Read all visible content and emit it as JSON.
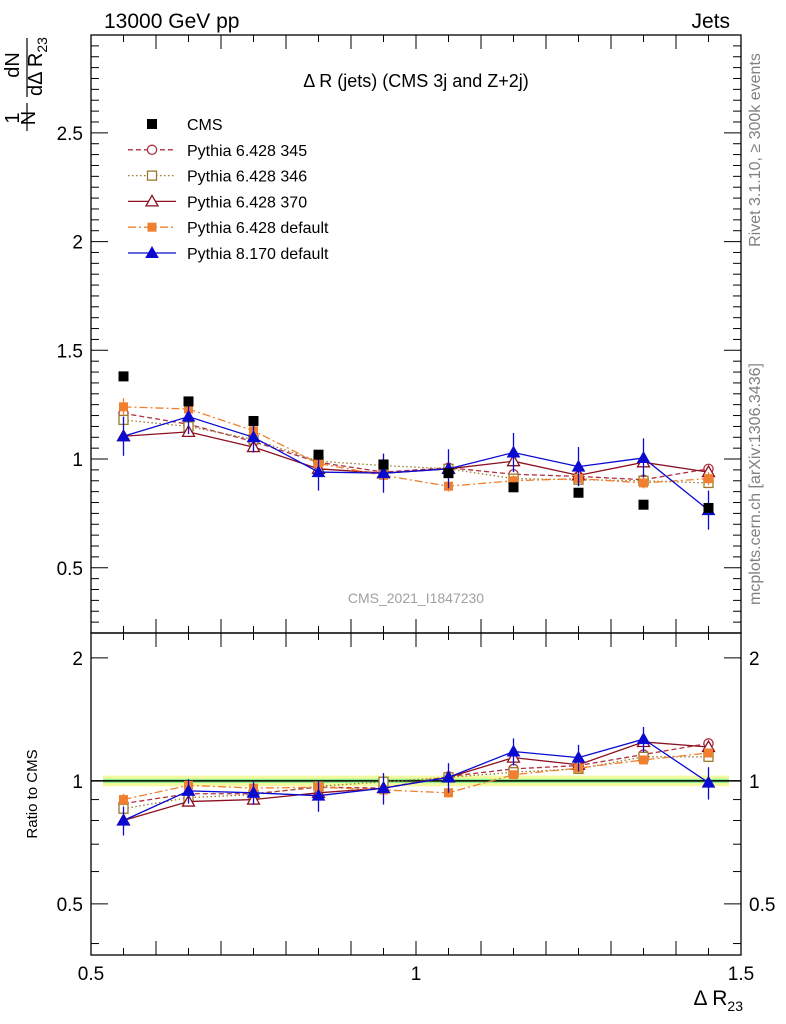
{
  "header": {
    "energy_label": "13000 GeV pp",
    "process_label": "Jets"
  },
  "side_labels": {
    "rivet": "Rivet 3.1.10, ≥ 300k events",
    "mcplots": "mcplots.cern.ch [arXiv:1306.3436]"
  },
  "watermark": "CMS_2021_I1847230",
  "chart_data": [
    {
      "type": "line",
      "title": "Δ R (jets) (CMS 3j and Z+2j)",
      "ylabel": {
        "top": "1",
        "frac": "dN",
        "bottom": "N dΔ R",
        "sub": "23"
      },
      "xlabel": {
        "main": "Δ R",
        "sub": "23"
      },
      "xlim": [
        0.5,
        1.5
      ],
      "ylim": [
        0.2,
        2.95
      ],
      "x_ticks": [
        0.5,
        1,
        1.5
      ],
      "x_tick_labels": [
        "0.5",
        "1",
        "1.5"
      ],
      "y_ticks": [
        0.5,
        1,
        1.5,
        2,
        2.5
      ],
      "y_tick_labels": [
        "0.5",
        "1",
        "1.5",
        "2",
        "2.5"
      ],
      "legend_position": "top-left",
      "data_series": {
        "name": "CMS",
        "x": [
          0.55,
          0.65,
          0.75,
          0.85,
          0.95,
          1.05,
          1.15,
          1.25,
          1.35,
          1.45
        ],
        "values": [
          1.38,
          1.265,
          1.175,
          1.02,
          0.975,
          0.935,
          0.87,
          0.845,
          0.79,
          0.775
        ]
      },
      "series": [
        {
          "name": "Pythia 6.428 345",
          "color": "#b03040",
          "marker": "circle-open",
          "dash": "5,3",
          "x": [
            0.55,
            0.65,
            0.75,
            0.85,
            0.95,
            1.05,
            1.15,
            1.25,
            1.35,
            1.45
          ],
          "values": [
            1.21,
            1.16,
            1.08,
            0.985,
            0.94,
            0.96,
            0.93,
            0.92,
            0.905,
            0.955
          ],
          "errors": [
            0.015,
            0.015,
            0.012,
            0.012,
            0.012,
            0.012,
            0.012,
            0.012,
            0.012,
            0.015
          ]
        },
        {
          "name": "Pythia 6.428 346",
          "color": "#9a7a2a",
          "marker": "square-open",
          "dash": "1.5,2.5",
          "x": [
            0.55,
            0.65,
            0.75,
            0.85,
            0.95,
            1.05,
            1.15,
            1.25,
            1.35,
            1.45
          ],
          "values": [
            1.18,
            1.15,
            1.09,
            0.99,
            0.97,
            0.955,
            0.91,
            0.905,
            0.9,
            0.89
          ],
          "errors": [
            0.015,
            0.015,
            0.012,
            0.012,
            0.012,
            0.012,
            0.012,
            0.012,
            0.012,
            0.015
          ]
        },
        {
          "name": "Pythia 6.428 370",
          "color": "#8b1020",
          "marker": "triangle-open",
          "dash": "",
          "x": [
            0.55,
            0.65,
            0.75,
            0.85,
            0.95,
            1.05,
            1.15,
            1.25,
            1.35,
            1.45
          ],
          "values": [
            1.105,
            1.125,
            1.055,
            0.955,
            0.935,
            0.955,
            0.99,
            0.925,
            0.985,
            0.94
          ],
          "errors": [
            0.015,
            0.015,
            0.012,
            0.012,
            0.012,
            0.012,
            0.012,
            0.012,
            0.012,
            0.015
          ]
        },
        {
          "name": "Pythia 6.428 default",
          "color": "#f08030",
          "marker": "square-filled",
          "dash": "8,3,2,3",
          "x": [
            0.55,
            0.65,
            0.75,
            0.85,
            0.95,
            1.05,
            1.15,
            1.25,
            1.35,
            1.45
          ],
          "values": [
            1.24,
            1.23,
            1.13,
            0.98,
            0.925,
            0.875,
            0.9,
            0.91,
            0.89,
            0.91
          ],
          "errors": [
            0.04,
            0.03,
            0.03,
            0.025,
            0.025,
            0.025,
            0.025,
            0.025,
            0.025,
            0.03
          ]
        },
        {
          "name": "Pythia 8.170 default",
          "color": "#0a0ad0",
          "marker": "triangle-filled",
          "dash": "",
          "x": [
            0.55,
            0.65,
            0.75,
            0.85,
            0.95,
            1.05,
            1.15,
            1.25,
            1.35,
            1.45
          ],
          "values": [
            1.105,
            1.195,
            1.1,
            0.94,
            0.935,
            0.955,
            1.03,
            0.965,
            1.005,
            0.765
          ],
          "errors": [
            0.09,
            0.08,
            0.07,
            0.085,
            0.09,
            0.09,
            0.09,
            0.09,
            0.09,
            0.09
          ]
        }
      ]
    },
    {
      "type": "line",
      "ylabel": "Ratio to CMS",
      "xlim": [
        0.5,
        1.5
      ],
      "ylim": [
        0.375,
        2.3
      ],
      "y_ticks": [
        0.5,
        1,
        2
      ],
      "y_tick_labels": [
        "0.5",
        "1",
        "2"
      ],
      "reference_line": 1,
      "series": [
        {
          "name": "Pythia 6.428 345",
          "x": [
            0.55,
            0.65,
            0.75,
            0.85,
            0.95,
            1.05,
            1.15,
            1.25,
            1.35,
            1.45
          ],
          "values": [
            0.88,
            0.93,
            0.93,
            0.965,
            0.96,
            1.025,
            1.07,
            1.09,
            1.16,
            1.235
          ],
          "errors": [
            0.012,
            0.012,
            0.012,
            0.012,
            0.012,
            0.012,
            0.012,
            0.012,
            0.012,
            0.015
          ]
        },
        {
          "name": "Pythia 6.428 346",
          "x": [
            0.55,
            0.65,
            0.75,
            0.85,
            0.95,
            1.05,
            1.15,
            1.25,
            1.35,
            1.45
          ],
          "values": [
            0.855,
            0.91,
            0.925,
            0.97,
            0.995,
            1.02,
            1.05,
            1.07,
            1.145,
            1.145
          ],
          "errors": [
            0.012,
            0.012,
            0.012,
            0.012,
            0.012,
            0.012,
            0.012,
            0.012,
            0.012,
            0.015
          ]
        },
        {
          "name": "Pythia 6.428 370",
          "x": [
            0.55,
            0.65,
            0.75,
            0.85,
            0.95,
            1.05,
            1.15,
            1.25,
            1.35,
            1.45
          ],
          "values": [
            0.8,
            0.89,
            0.9,
            0.935,
            0.96,
            1.02,
            1.14,
            1.095,
            1.245,
            1.21
          ],
          "errors": [
            0.012,
            0.012,
            0.012,
            0.012,
            0.012,
            0.012,
            0.012,
            0.012,
            0.012,
            0.015
          ]
        },
        {
          "name": "Pythia 6.428 default",
          "x": [
            0.55,
            0.65,
            0.75,
            0.85,
            0.95,
            1.05,
            1.15,
            1.25,
            1.35,
            1.45
          ],
          "values": [
            0.9,
            0.975,
            0.96,
            0.965,
            0.95,
            0.935,
            1.035,
            1.075,
            1.125,
            1.17
          ],
          "errors": [
            0.03,
            0.025,
            0.025,
            0.025,
            0.025,
            0.025,
            0.025,
            0.025,
            0.025,
            0.03
          ]
        },
        {
          "name": "Pythia 8.170 default",
          "x": [
            0.55,
            0.65,
            0.75,
            0.85,
            0.95,
            1.05,
            1.15,
            1.25,
            1.35,
            1.45
          ],
          "values": [
            0.8,
            0.945,
            0.935,
            0.92,
            0.96,
            1.02,
            1.18,
            1.14,
            1.265,
            0.99
          ],
          "errors": [
            0.065,
            0.065,
            0.06,
            0.08,
            0.085,
            0.085,
            0.09,
            0.085,
            0.09,
            0.09
          ]
        }
      ]
    }
  ]
}
